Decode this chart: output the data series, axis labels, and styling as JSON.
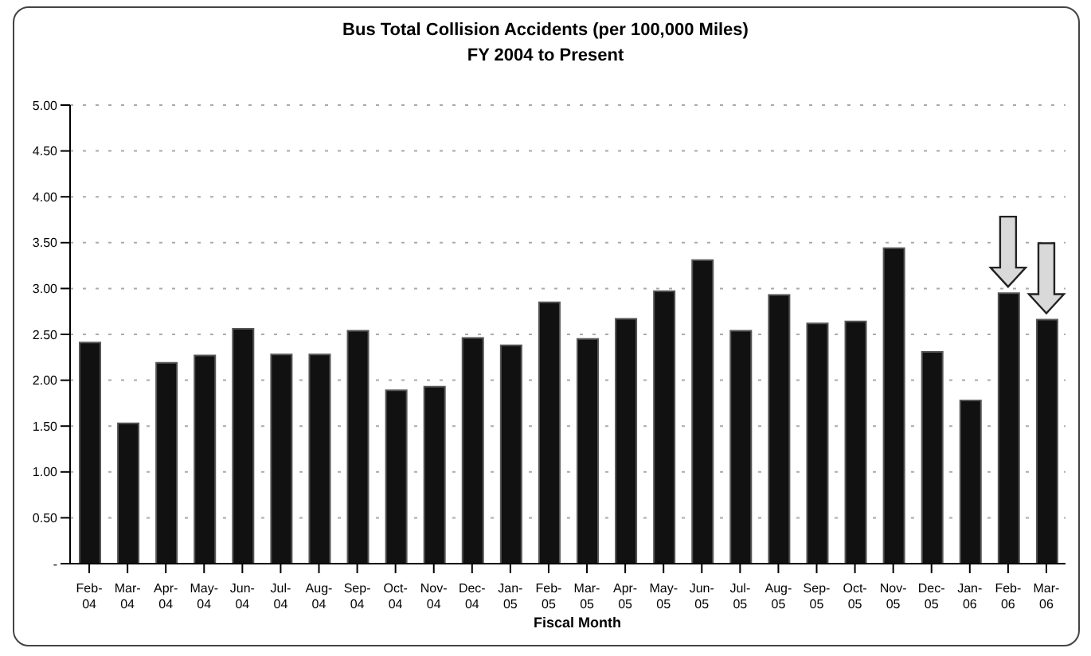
{
  "chart_data": {
    "type": "bar",
    "title": "Bus Total Collision Accidents (per 100,000 Miles)",
    "subtitle": "FY 2004 to Present",
    "xlabel": "Fiscal Month",
    "categories": [
      "Feb-04",
      "Mar-04",
      "Apr-04",
      "May-04",
      "Jun-04",
      "Jul-04",
      "Aug-04",
      "Sep-04",
      "Oct-04",
      "Nov-04",
      "Dec-04",
      "Jan-05",
      "Feb-05",
      "Mar-05",
      "Apr-05",
      "May-05",
      "Jun-05",
      "Jul-05",
      "Aug-05",
      "Sep-05",
      "Oct-05",
      "Nov-05",
      "Dec-05",
      "Jan-06",
      "Feb-06",
      "Mar-06"
    ],
    "values": [
      2.41,
      1.53,
      2.19,
      2.27,
      2.56,
      2.28,
      2.28,
      2.54,
      1.89,
      1.93,
      2.46,
      2.38,
      2.85,
      2.45,
      2.67,
      2.97,
      3.31,
      2.54,
      2.93,
      2.62,
      2.64,
      3.44,
      2.31,
      1.78,
      2.95,
      2.66
    ],
    "color": "#111111",
    "ylim": [
      0,
      5
    ],
    "yticks": [
      {
        "value": 0,
        "label": "-"
      },
      {
        "value": 0.5,
        "label": "0.50"
      },
      {
        "value": 1,
        "label": "1.00"
      },
      {
        "value": 1.5,
        "label": "1.50"
      },
      {
        "value": 2,
        "label": "2.00"
      },
      {
        "value": 2.5,
        "label": "2.50"
      },
      {
        "value": 3,
        "label": "3.00"
      },
      {
        "value": 3.5,
        "label": "3.50"
      },
      {
        "value": 4,
        "label": "4.00"
      },
      {
        "value": 4.5,
        "label": "4.50"
      },
      {
        "value": 5,
        "label": "5.00"
      }
    ],
    "grid": "y"
  }
}
